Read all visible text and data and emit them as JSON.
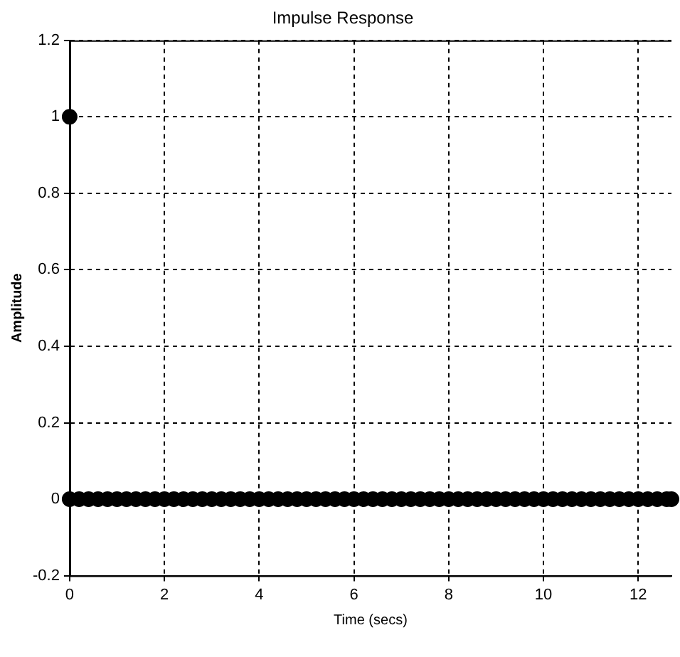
{
  "chart_data": {
    "type": "scatter",
    "title": "Impulse Response",
    "xlabel": "Time (secs)",
    "ylabel": "Amplitude",
    "x": [
      0,
      0,
      0.2,
      0.4,
      0.6,
      0.8,
      1,
      1.2,
      1.4,
      1.6,
      1.8,
      2,
      2.2,
      2.4,
      2.6,
      2.8,
      3,
      3.2,
      3.4,
      3.6,
      3.8,
      4,
      4.2,
      4.4,
      4.6,
      4.8,
      5,
      5.2,
      5.4,
      5.6,
      5.8,
      6,
      6.2,
      6.4,
      6.6,
      6.8,
      7,
      7.2,
      7.4,
      7.6,
      7.8,
      8,
      8.2,
      8.4,
      8.6,
      8.8,
      9,
      9.2,
      9.4,
      9.6,
      9.8,
      10,
      10.2,
      10.4,
      10.6,
      10.8,
      11,
      11.2,
      11.4,
      11.6,
      11.8,
      12,
      12.2,
      12.4,
      12.6,
      12.7
    ],
    "values": [
      1,
      0,
      0,
      0,
      0,
      0,
      0,
      0,
      0,
      0,
      0,
      0,
      0,
      0,
      0,
      0,
      0,
      0,
      0,
      0,
      0,
      0,
      0,
      0,
      0,
      0,
      0,
      0,
      0,
      0,
      0,
      0,
      0,
      0,
      0,
      0,
      0,
      0,
      0,
      0,
      0,
      0,
      0,
      0,
      0,
      0,
      0,
      0,
      0,
      0,
      0,
      0,
      0,
      0,
      0,
      0,
      0,
      0,
      0,
      0,
      0,
      0,
      0,
      0,
      0,
      0
    ],
    "color": "#000000",
    "marker": "circle",
    "xlim": [
      0,
      12.7
    ],
    "xticks": [
      0,
      2,
      4,
      6,
      8,
      10,
      12
    ],
    "ylim": [
      -0.2,
      1.2
    ],
    "yticks": [
      -0.2,
      0,
      0.2,
      0.4,
      0.6,
      0.8,
      1,
      1.2
    ],
    "grid": true
  }
}
